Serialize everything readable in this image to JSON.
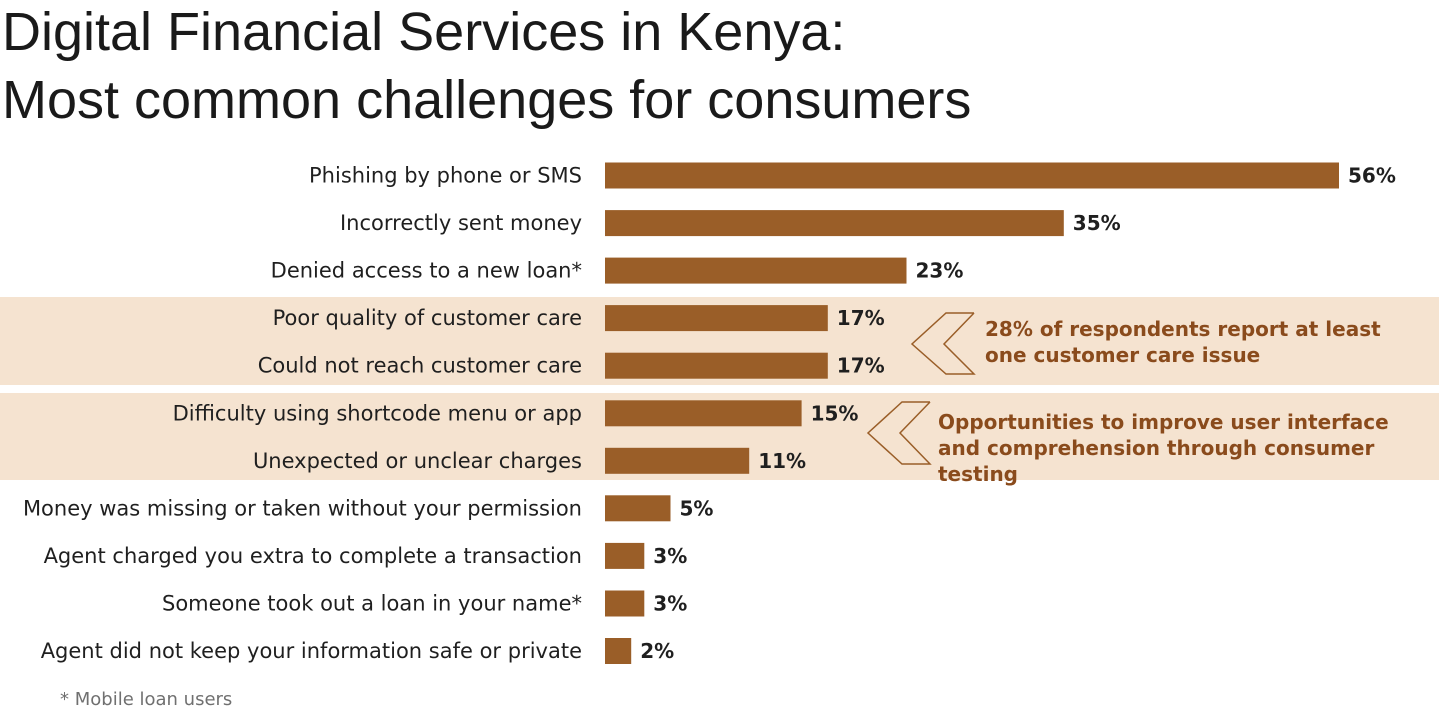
{
  "title": {
    "line1": "Digital Financial Services in Kenya:",
    "line2": "Most common challenges for consumers"
  },
  "chart_data": {
    "type": "bar",
    "orientation": "horizontal",
    "categories": [
      "Phishing by phone or SMS",
      "Incorrectly sent money",
      "Denied access to a new loan*",
      "Poor quality of customer care",
      "Could not reach customer care",
      "Difficulty using shortcode menu or app",
      "Unexpected or unclear charges",
      "Money was missing or taken without your permission",
      "Agent charged you extra to complete a transaction",
      "Someone took out a loan in your name*",
      "Agent did not keep your information safe or private"
    ],
    "values": [
      56,
      35,
      23,
      17,
      17,
      15,
      11,
      5,
      3,
      3,
      2
    ],
    "value_labels": [
      "56%",
      "35%",
      "23%",
      "17%",
      "17%",
      "15%",
      "11%",
      "5%",
      "3%",
      "3%",
      "2%"
    ],
    "xlim": [
      0,
      56
    ],
    "grid": false,
    "bar_color": "#9a5e28"
  },
  "callouts": [
    {
      "text": "28% of respondents report at least one customer care issue"
    },
    {
      "text": "Opportunities to improve user interface and comprehension through consumer testing"
    }
  ],
  "colors": {
    "bar": "#9a5e28",
    "band": "#f5e3d0",
    "callout_text": "#8a4b1c"
  },
  "footnote": "* Mobile loan users"
}
